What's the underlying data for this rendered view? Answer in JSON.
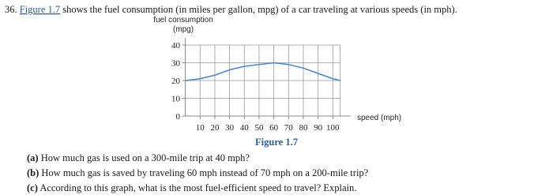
{
  "problem": {
    "number": "36.",
    "link": "Figure 1.7",
    "text": "shows the fuel consumption (in miles per gallon, mpg) of a car traveling at various speeds (in mph)."
  },
  "chart_data": {
    "type": "line",
    "y_label_line1": "fuel consumption",
    "y_label_line2": "(mpg)",
    "x_label": "speed (mph)",
    "x": [
      0,
      10,
      20,
      30,
      40,
      50,
      60,
      70,
      80,
      90,
      100,
      105
    ],
    "series": [
      {
        "color": "#4a86c5",
        "values": [
          20,
          21,
          23,
          26,
          28,
          29,
          30,
          29,
          27,
          24,
          21,
          20
        ]
      }
    ],
    "xlim": [
      0,
      112
    ],
    "ylim": [
      0,
      44
    ],
    "xticks": [
      10,
      20,
      30,
      40,
      50,
      60,
      70,
      80,
      90,
      100
    ],
    "yticks": [
      0,
      10,
      20,
      30,
      40
    ],
    "grid": true
  },
  "figure_caption": "Figure 1.7",
  "questions": [
    {
      "label": "(a)",
      "text": "How much gas is used on a 300-mile trip at 40 mph?"
    },
    {
      "label": "(b)",
      "text": "How much gas is saved by traveling 60 mph instead of 70 mph on a 200-mile trip?"
    },
    {
      "label": "(c)",
      "text": "According to this graph, what is the most fuel-efficient speed to travel? Explain."
    }
  ]
}
